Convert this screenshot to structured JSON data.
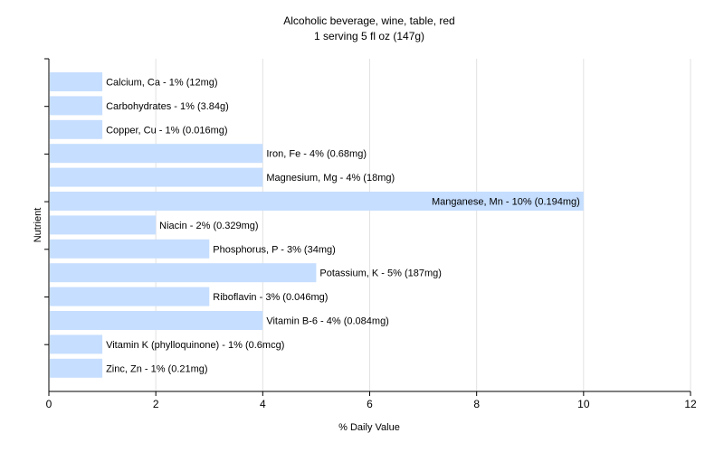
{
  "chart_data": {
    "type": "bar",
    "orientation": "horizontal",
    "title": "Alcoholic beverage, wine, table, red",
    "subtitle": "1 serving 5 fl oz (147g)",
    "xlabel": "% Daily Value",
    "ylabel": "Nutrient",
    "xlim": [
      0,
      12
    ],
    "xticks": [
      0,
      2,
      4,
      6,
      8,
      10,
      12
    ],
    "grid": true,
    "bar_color": "#c6deff",
    "categories": [
      "Calcium, Ca",
      "Carbohydrates",
      "Copper, Cu",
      "Iron, Fe",
      "Magnesium, Mg",
      "Manganese, Mn",
      "Niacin",
      "Phosphorus, P",
      "Potassium, K",
      "Riboflavin",
      "Vitamin B-6",
      "Vitamin K (phylloquinone)",
      "Zinc, Zn"
    ],
    "values": [
      1,
      1,
      1,
      4,
      4,
      10,
      2,
      3,
      5,
      3,
      4,
      1,
      1
    ],
    "labels": [
      "Calcium, Ca - 1% (12mg)",
      "Carbohydrates - 1% (3.84g)",
      "Copper, Cu - 1% (0.016mg)",
      "Iron, Fe - 4% (0.68mg)",
      "Magnesium, Mg - 4% (18mg)",
      "Manganese, Mn - 10% (0.194mg)",
      "Niacin - 2% (0.329mg)",
      "Phosphorus, P - 3% (34mg)",
      "Potassium, K - 5% (187mg)",
      "Riboflavin - 3% (0.046mg)",
      "Vitamin B-6 - 4% (0.084mg)",
      "Vitamin K (phylloquinone) - 1% (0.6mcg)",
      "Zinc, Zn - 1% (0.21mg)"
    ]
  }
}
